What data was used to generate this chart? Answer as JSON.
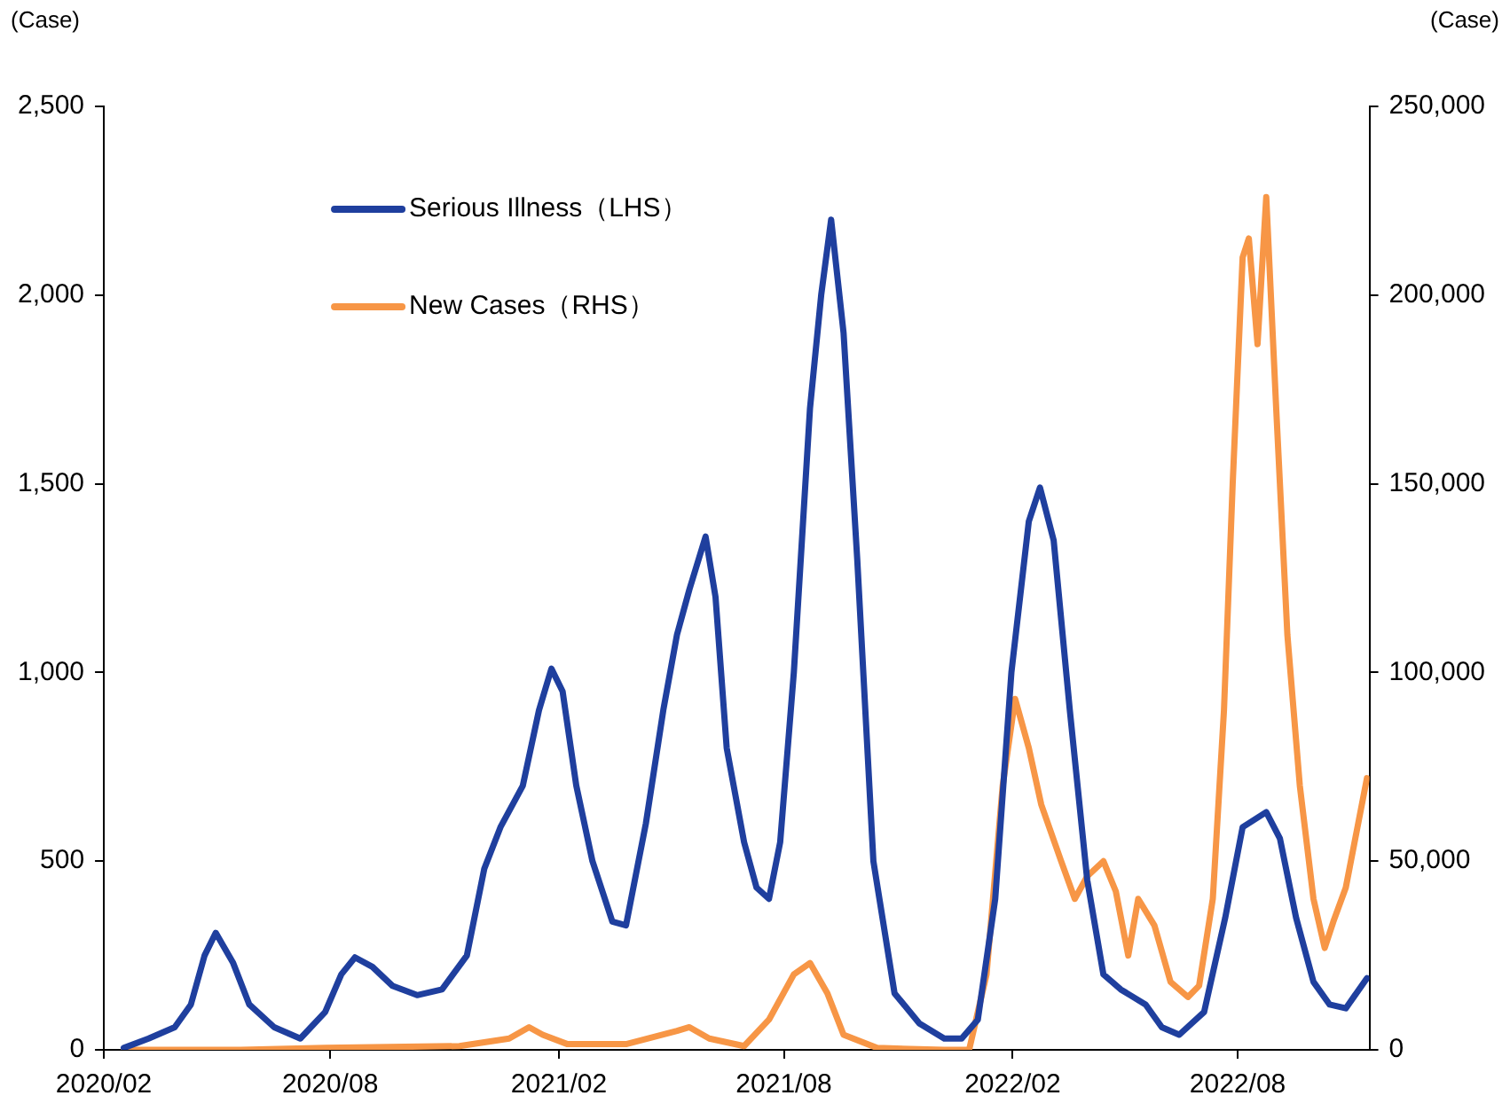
{
  "chart_data": {
    "type": "line",
    "ylabel": "(Case)",
    "y2label": "(Case)",
    "xlim": [
      "2020-02-01",
      "2022-11-15"
    ],
    "xticks": [
      {
        "value": "2020-02-01",
        "label": "2020/02"
      },
      {
        "value": "2020-08-01",
        "label": "2020/08"
      },
      {
        "value": "2021-02-01",
        "label": "2021/02"
      },
      {
        "value": "2021-08-01",
        "label": "2021/08"
      },
      {
        "value": "2022-02-01",
        "label": "2022/02"
      },
      {
        "value": "2022-08-01",
        "label": "2022/08"
      }
    ],
    "ylim": [
      0,
      2500
    ],
    "yticks": [
      0,
      500,
      {
        "value": 1000,
        "label": "1,000"
      },
      {
        "value": 1500,
        "label": "1,500"
      },
      {
        "value": 2000,
        "label": "2,000"
      },
      {
        "value": 2500,
        "label": "2,500"
      }
    ],
    "y2lim": [
      0,
      250000
    ],
    "y2ticks": [
      0,
      {
        "value": 50000,
        "label": "50,000"
      },
      {
        "value": 100000,
        "label": "100,000"
      },
      {
        "value": 150000,
        "label": "150,000"
      },
      {
        "value": 200000,
        "label": "200,000"
      },
      {
        "value": 250000,
        "label": "250,000"
      }
    ],
    "grid": false,
    "legend": "top left",
    "marker": "none",
    "line_style": "solid",
    "series": [
      {
        "name": "Serious Illness（LHS）",
        "color": "#1f3f9e",
        "axis": "y",
        "x": [
          "2020-02-17",
          "2020-03-08",
          "2020-03-29",
          "2020-04-11",
          "2020-04-22",
          "2020-05-01",
          "2020-05-15",
          "2020-05-28",
          "2020-06-17",
          "2020-07-08",
          "2020-07-28",
          "2020-08-10",
          "2020-08-21",
          "2020-09-04",
          "2020-09-20",
          "2020-10-10",
          "2020-10-30",
          "2020-11-19",
          "2020-12-03",
          "2020-12-16",
          "2021-01-03",
          "2021-01-16",
          "2021-01-26",
          "2021-02-04",
          "2021-02-15",
          "2021-02-28",
          "2021-03-16",
          "2021-03-27",
          "2021-04-12",
          "2021-04-26",
          "2021-05-07",
          "2021-05-17",
          "2021-05-30",
          "2021-06-07",
          "2021-06-16",
          "2021-06-30",
          "2021-07-10",
          "2021-07-20",
          "2021-07-29",
          "2021-08-09",
          "2021-08-22",
          "2021-08-31",
          "2021-09-08",
          "2021-09-18",
          "2021-09-29",
          "2021-10-12",
          "2021-10-29",
          "2021-11-18",
          "2021-12-08",
          "2021-12-22",
          "2022-01-04",
          "2022-01-18",
          "2022-01-31",
          "2022-02-14",
          "2022-02-23",
          "2022-03-06",
          "2022-03-19",
          "2022-04-02",
          "2022-04-15",
          "2022-04-29",
          "2022-05-19",
          "2022-06-01",
          "2022-06-15",
          "2022-07-05",
          "2022-07-22",
          "2022-08-05",
          "2022-08-24",
          "2022-09-04",
          "2022-09-17",
          "2022-10-01",
          "2022-10-14",
          "2022-10-27",
          "2022-11-13"
        ],
        "values": [
          5,
          30,
          60,
          120,
          250,
          310,
          230,
          120,
          60,
          30,
          100,
          200,
          245,
          220,
          170,
          145,
          160,
          250,
          480,
          590,
          700,
          900,
          1010,
          950,
          700,
          500,
          340,
          330,
          600,
          900,
          1100,
          1220,
          1360,
          1200,
          800,
          550,
          430,
          400,
          550,
          1000,
          1700,
          2000,
          2200,
          1900,
          1300,
          500,
          150,
          70,
          30,
          30,
          80,
          400,
          1000,
          1400,
          1490,
          1350,
          900,
          450,
          200,
          160,
          120,
          60,
          40,
          100,
          350,
          590,
          630,
          560,
          350,
          180,
          120,
          110,
          190
        ]
      },
      {
        "name": "New Cases（RHS）",
        "color": "#f79646",
        "axis": "y2",
        "x": [
          "2020-02-17",
          "2020-05-21",
          "2020-07-28",
          "2020-11-13",
          "2020-12-23",
          "2021-01-08",
          "2021-01-19",
          "2021-02-08",
          "2021-03-27",
          "2021-05-07",
          "2021-05-17",
          "2021-06-02",
          "2021-06-30",
          "2021-07-20",
          "2021-08-09",
          "2021-08-22",
          "2021-09-05",
          "2021-09-18",
          "2021-10-15",
          "2021-12-08",
          "2021-12-28",
          "2022-01-11",
          "2022-01-24",
          "2022-02-03",
          "2022-02-14",
          "2022-02-24",
          "2022-03-12",
          "2022-03-23",
          "2022-04-02",
          "2022-04-15",
          "2022-04-25",
          "2022-05-05",
          "2022-05-13",
          "2022-05-26",
          "2022-06-08",
          "2022-06-22",
          "2022-07-01",
          "2022-07-12",
          "2022-07-21",
          "2022-07-28",
          "2022-08-05",
          "2022-08-10",
          "2022-08-17",
          "2022-08-24",
          "2022-09-01",
          "2022-09-10",
          "2022-09-20",
          "2022-10-01",
          "2022-10-10",
          "2022-10-17",
          "2022-10-27",
          "2022-11-13"
        ],
        "values": [
          0,
          0,
          500,
          1000,
          3000,
          6000,
          4000,
          1500,
          1500,
          5000,
          6000,
          3000,
          1000,
          8000,
          20000,
          23000,
          15000,
          4000,
          500,
          0,
          0,
          20000,
          70000,
          93000,
          80000,
          65000,
          50000,
          40000,
          46000,
          50000,
          42000,
          25000,
          40000,
          33000,
          18000,
          14000,
          17000,
          40000,
          90000,
          150000,
          210000,
          215000,
          187000,
          226000,
          170000,
          110000,
          70000,
          40000,
          27000,
          34000,
          43000,
          72000
        ]
      }
    ]
  }
}
